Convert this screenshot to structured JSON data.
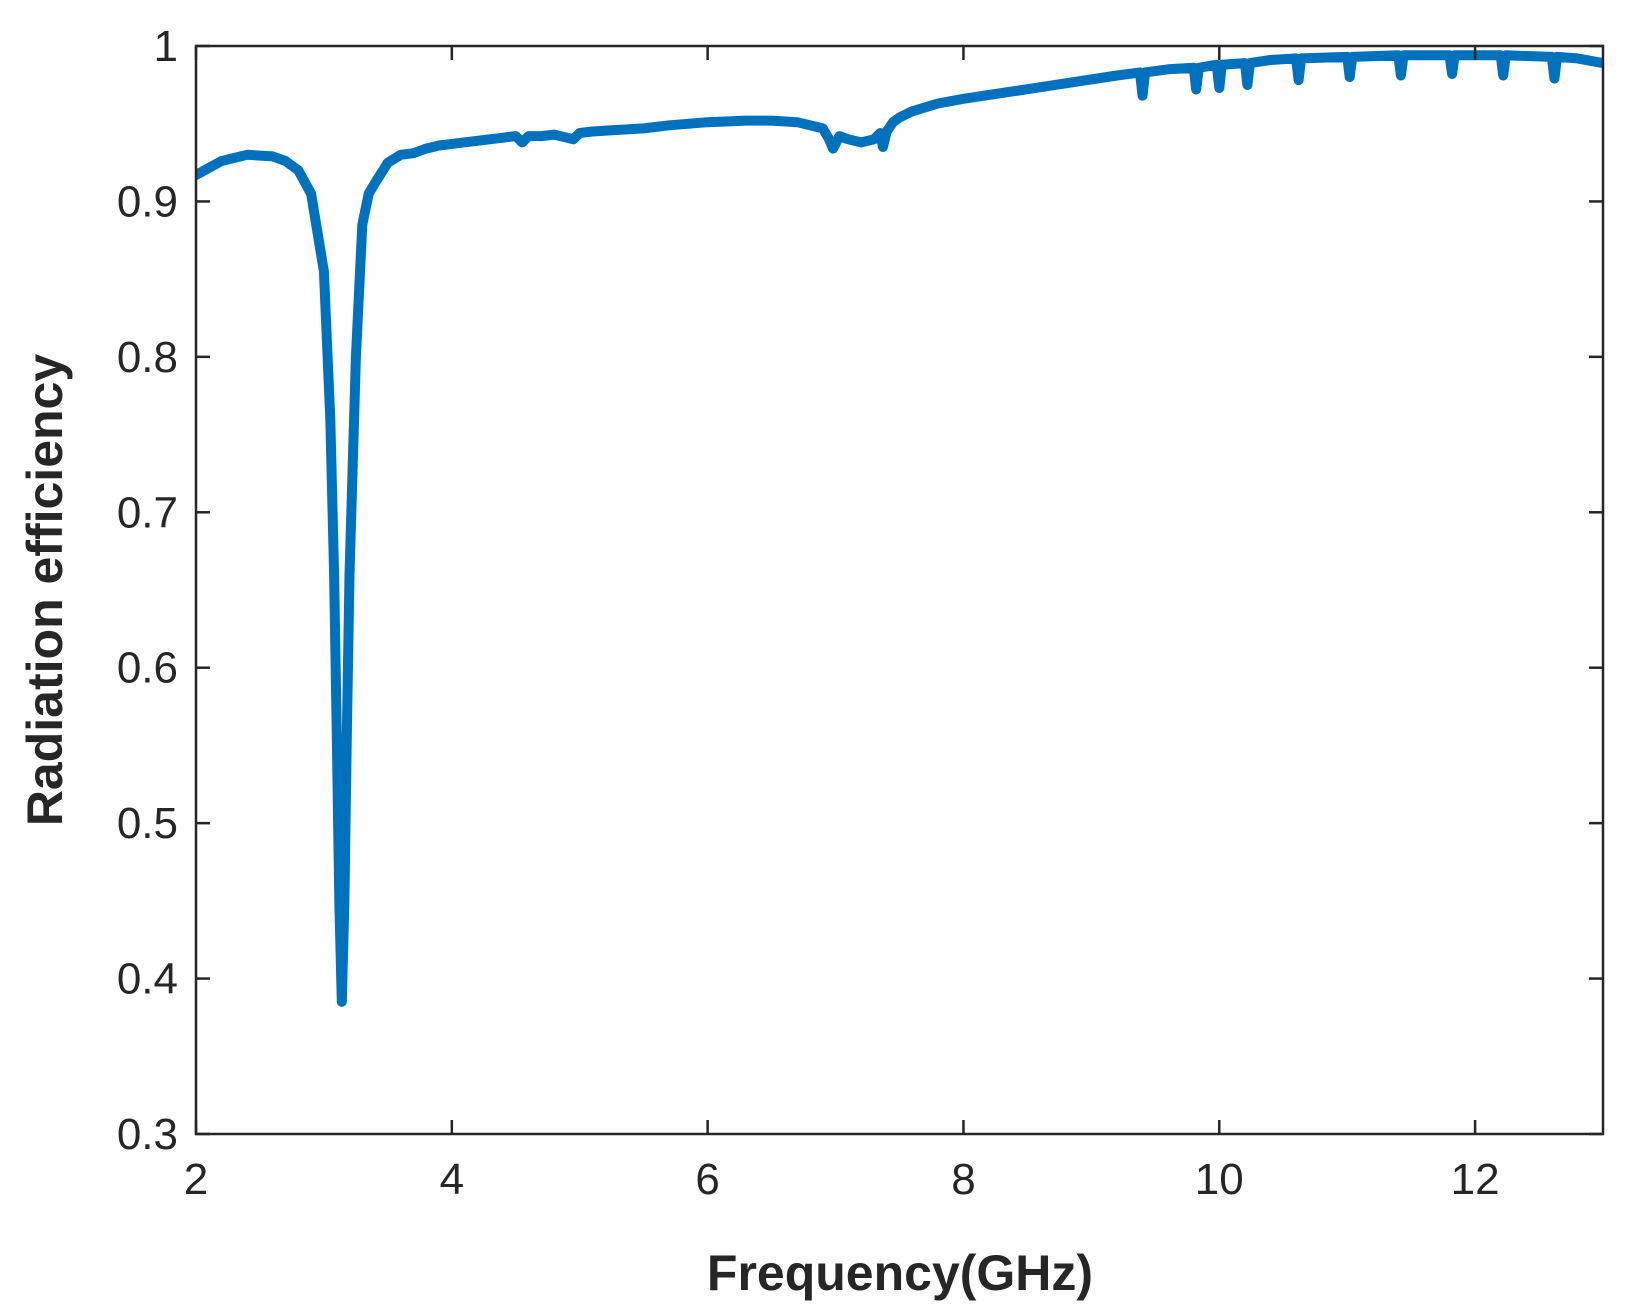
{
  "chart_data": {
    "type": "line",
    "title": "",
    "xlabel": "Frequency(GHz)",
    "ylabel": "Radiation efficiency",
    "xlim": [
      2,
      13
    ],
    "ylim": [
      0.3,
      1
    ],
    "xticks": [
      2,
      4,
      6,
      8,
      10,
      12
    ],
    "yticks": [
      0.3,
      0.4,
      0.5,
      0.6,
      0.7,
      0.8,
      0.9,
      1
    ],
    "xtick_labels": [
      "2",
      "4",
      "6",
      "8",
      "10",
      "12"
    ],
    "ytick_labels": [
      "0.3",
      "0.4",
      "0.5",
      "0.6",
      "0.7",
      "0.8",
      "0.9",
      "1"
    ],
    "grid": false,
    "legend": "none",
    "line_color": "#0072BD",
    "series": [
      {
        "x": [
          2.0,
          2.2,
          2.4,
          2.6,
          2.7,
          2.8,
          2.9,
          2.95,
          3.0,
          3.05,
          3.08,
          3.1,
          3.12,
          3.14,
          3.16,
          3.18,
          3.2,
          3.25,
          3.3,
          3.35,
          3.4,
          3.5,
          3.6,
          3.7,
          3.8,
          3.9,
          4.0,
          4.2,
          4.4,
          4.5,
          4.55,
          4.6,
          4.7,
          4.8,
          4.9,
          4.95,
          5.0,
          5.1,
          5.3,
          5.5,
          5.7,
          6.0,
          6.3,
          6.5,
          6.7,
          6.9,
          6.95,
          6.98,
          7.0,
          7.03,
          7.1,
          7.2,
          7.3,
          7.35,
          7.37,
          7.4,
          7.45,
          7.5,
          7.6,
          7.8,
          8.0,
          8.4,
          8.8,
          9.2,
          9.38,
          9.4,
          9.42,
          9.6,
          9.8,
          9.82,
          9.84,
          9.98,
          10.0,
          10.02,
          10.2,
          10.22,
          10.24,
          10.4,
          10.6,
          10.62,
          10.64,
          11.0,
          11.02,
          11.04,
          11.4,
          11.42,
          11.44,
          11.8,
          11.82,
          11.84,
          12.2,
          12.22,
          12.24,
          12.6,
          12.62,
          12.64,
          12.8,
          13.0
        ],
        "y": [
          0.917,
          0.926,
          0.93,
          0.929,
          0.926,
          0.92,
          0.905,
          0.88,
          0.855,
          0.76,
          0.66,
          0.56,
          0.45,
          0.385,
          0.45,
          0.56,
          0.66,
          0.8,
          0.885,
          0.905,
          0.912,
          0.925,
          0.93,
          0.931,
          0.934,
          0.936,
          0.937,
          0.939,
          0.941,
          0.942,
          0.938,
          0.942,
          0.942,
          0.943,
          0.941,
          0.94,
          0.944,
          0.945,
          0.946,
          0.947,
          0.949,
          0.951,
          0.952,
          0.952,
          0.951,
          0.947,
          0.94,
          0.934,
          0.937,
          0.942,
          0.94,
          0.938,
          0.94,
          0.944,
          0.935,
          0.945,
          0.951,
          0.954,
          0.958,
          0.963,
          0.966,
          0.971,
          0.976,
          0.981,
          0.983,
          0.968,
          0.983,
          0.985,
          0.986,
          0.972,
          0.986,
          0.988,
          0.973,
          0.988,
          0.989,
          0.975,
          0.989,
          0.991,
          0.992,
          0.978,
          0.992,
          0.993,
          0.98,
          0.993,
          0.994,
          0.981,
          0.994,
          0.994,
          0.982,
          0.994,
          0.994,
          0.981,
          0.994,
          0.993,
          0.979,
          0.993,
          0.992,
          0.989
        ]
      }
    ]
  }
}
